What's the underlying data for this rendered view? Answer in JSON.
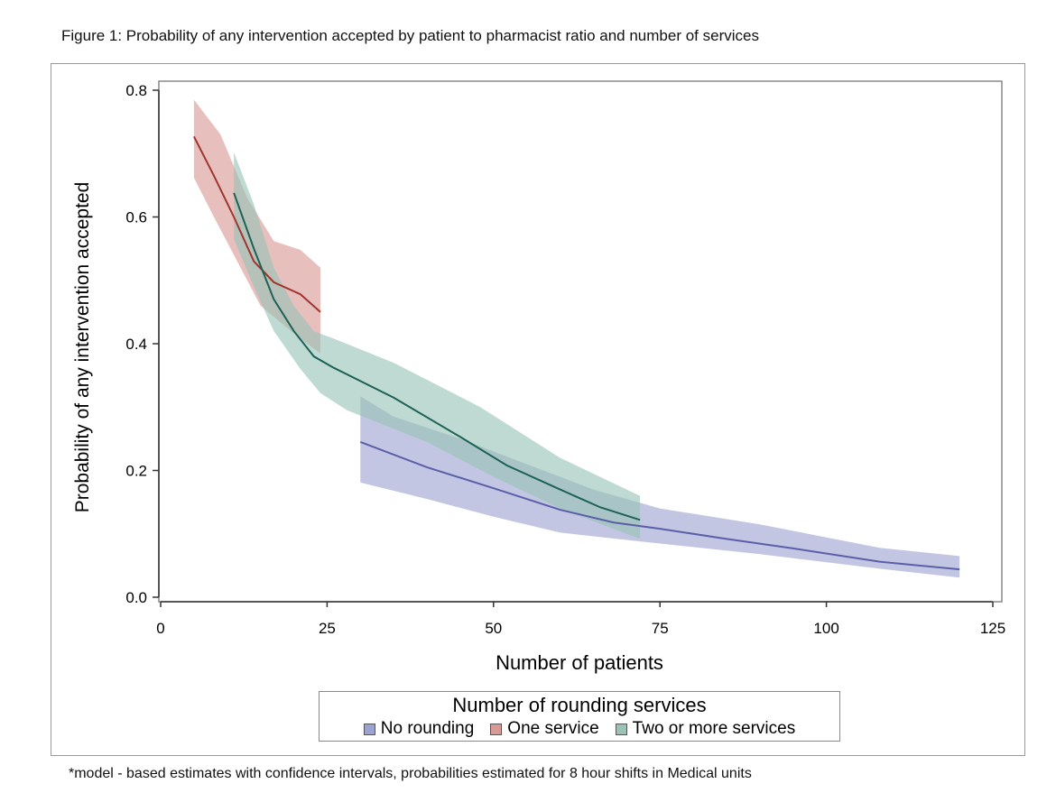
{
  "figure_title": "Figure 1: Probability of any intervention accepted by patient to pharmacist ratio and number of services",
  "footnote": "*model - based estimates with confidence intervals, probabilities estimated for 8 hour shifts in Medical units",
  "chart_data": {
    "type": "line",
    "title": "",
    "xlabel": "Number of patients",
    "ylabel": "Probability of any intervention accepted",
    "xlim": [
      0,
      125
    ],
    "ylim": [
      0,
      0.8
    ],
    "x_ticks": [
      0,
      25,
      50,
      75,
      100,
      125
    ],
    "x_tick_labels": [
      "0",
      "25",
      "50",
      "75",
      "100",
      "125"
    ],
    "y_ticks": [
      0,
      0.2,
      0.4,
      0.6,
      0.8
    ],
    "y_tick_labels": [
      "0.0",
      "0.2",
      "0.4",
      "0.6",
      "0.8"
    ],
    "grid": false,
    "legend_title": "Number of rounding services",
    "legend_position": "bottom",
    "series": [
      {
        "name": "No rounding",
        "color": "#5a5fa8",
        "fill": "#9da3d1",
        "points": [
          [
            30,
            0.245
          ],
          [
            40,
            0.205
          ],
          [
            50,
            0.172
          ],
          [
            60,
            0.138
          ],
          [
            68,
            0.118
          ],
          [
            75,
            0.108
          ],
          [
            85,
            0.092
          ],
          [
            95,
            0.077
          ],
          [
            108,
            0.056
          ],
          [
            120,
            0.044
          ]
        ],
        "upper": [
          [
            30,
            0.317
          ],
          [
            35,
            0.285
          ],
          [
            45,
            0.25
          ],
          [
            55,
            0.21
          ],
          [
            65,
            0.17
          ],
          [
            75,
            0.14
          ],
          [
            90,
            0.115
          ],
          [
            108,
            0.078
          ],
          [
            120,
            0.065
          ]
        ],
        "lower": [
          [
            30,
            0.181
          ],
          [
            40,
            0.155
          ],
          [
            50,
            0.127
          ],
          [
            60,
            0.102
          ],
          [
            72,
            0.088
          ],
          [
            90,
            0.068
          ],
          [
            108,
            0.045
          ],
          [
            120,
            0.031
          ]
        ]
      },
      {
        "name": "One service",
        "color": "#a0342e",
        "fill": "#d99a96",
        "points": [
          [
            5,
            0.727
          ],
          [
            8,
            0.665
          ],
          [
            11,
            0.6
          ],
          [
            14,
            0.53
          ],
          [
            17,
            0.497
          ],
          [
            21,
            0.478
          ],
          [
            24,
            0.45
          ]
        ],
        "upper": [
          [
            5,
            0.785
          ],
          [
            9,
            0.73
          ],
          [
            13,
            0.63
          ],
          [
            17,
            0.562
          ],
          [
            21,
            0.548
          ],
          [
            24,
            0.52
          ]
        ],
        "lower": [
          [
            5,
            0.662
          ],
          [
            8,
            0.6
          ],
          [
            11,
            0.54
          ],
          [
            15,
            0.46
          ],
          [
            19,
            0.425
          ],
          [
            22,
            0.4
          ],
          [
            24,
            0.385
          ]
        ]
      },
      {
        "name": "Two or more services",
        "color": "#1e6155",
        "fill": "#98c3b6",
        "points": [
          [
            11,
            0.638
          ],
          [
            14,
            0.55
          ],
          [
            17,
            0.47
          ],
          [
            20,
            0.42
          ],
          [
            23,
            0.38
          ],
          [
            26,
            0.362
          ],
          [
            35,
            0.315
          ],
          [
            45,
            0.253
          ],
          [
            52,
            0.208
          ],
          [
            60,
            0.17
          ],
          [
            66,
            0.142
          ],
          [
            72,
            0.122
          ]
        ],
        "upper": [
          [
            11,
            0.702
          ],
          [
            14,
            0.62
          ],
          [
            17,
            0.52
          ],
          [
            20,
            0.46
          ],
          [
            23,
            0.42
          ],
          [
            26,
            0.408
          ],
          [
            35,
            0.37
          ],
          [
            48,
            0.3
          ],
          [
            60,
            0.22
          ],
          [
            72,
            0.16
          ]
        ],
        "lower": [
          [
            11,
            0.565
          ],
          [
            14,
            0.49
          ],
          [
            17,
            0.42
          ],
          [
            21,
            0.36
          ],
          [
            24,
            0.322
          ],
          [
            28,
            0.295
          ],
          [
            40,
            0.245
          ],
          [
            50,
            0.19
          ],
          [
            60,
            0.14
          ],
          [
            72,
            0.092
          ]
        ]
      }
    ]
  }
}
